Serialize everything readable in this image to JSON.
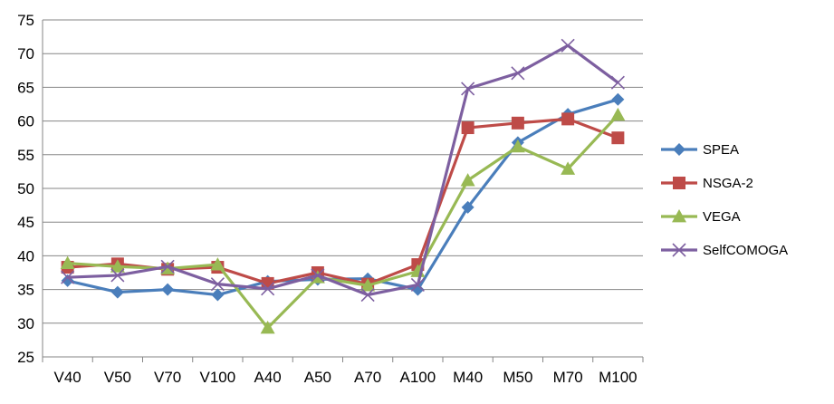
{
  "chart_data": {
    "type": "line",
    "title": "",
    "xlabel": "",
    "ylabel": "",
    "categories": [
      "V40",
      "V50",
      "V70",
      "V100",
      "A40",
      "A50",
      "A70",
      "A100",
      "M40",
      "M50",
      "M70",
      "M100"
    ],
    "ylim": [
      25,
      75
    ],
    "yticks": [
      25,
      30,
      35,
      40,
      45,
      50,
      55,
      60,
      65,
      70,
      75
    ],
    "grid": "horizontal",
    "legend": "right",
    "series": [
      {
        "name": "SPEA",
        "color": "#4a7ebb",
        "marker": "diamond",
        "values": [
          36.3,
          34.6,
          35.0,
          34.2,
          36.2,
          36.5,
          36.6,
          35.0,
          47.2,
          56.8,
          61.0,
          63.2
        ]
      },
      {
        "name": "NSGA-2",
        "color": "#be4b48",
        "marker": "square",
        "values": [
          38.3,
          38.8,
          38.0,
          38.3,
          35.9,
          37.5,
          35.8,
          38.7,
          59.0,
          59.7,
          60.3,
          57.5
        ]
      },
      {
        "name": "VEGA",
        "color": "#98b954",
        "marker": "triangle",
        "values": [
          38.9,
          38.4,
          38.1,
          38.7,
          29.3,
          36.8,
          35.6,
          37.7,
          51.2,
          56.2,
          52.9,
          60.9
        ]
      },
      {
        "name": "SelfCOMOGA",
        "color": "#7d5fa0",
        "marker": "x",
        "values": [
          36.8,
          37.1,
          38.4,
          35.8,
          35.1,
          37.1,
          34.2,
          35.7,
          64.8,
          67.1,
          71.2,
          65.7
        ]
      }
    ]
  }
}
